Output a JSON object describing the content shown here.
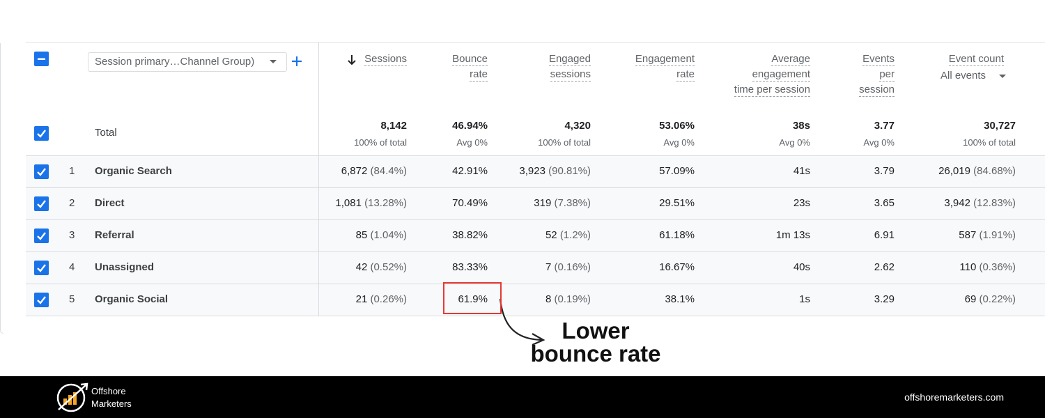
{
  "toolbar": {
    "dimension": "Session primary…Channel Group)"
  },
  "table": {
    "columns": [
      {
        "label": [
          "Sessions"
        ]
      },
      {
        "label": [
          "Bounce",
          "rate"
        ]
      },
      {
        "label": [
          "Engaged",
          "sessions"
        ]
      },
      {
        "label": [
          "Engagement",
          "rate"
        ]
      },
      {
        "label": [
          "Average",
          "engagement",
          "time per session"
        ]
      },
      {
        "label": [
          "Events",
          "per",
          "session"
        ]
      },
      {
        "label": [
          "Event count"
        ],
        "filter": "All events"
      }
    ],
    "total": {
      "label": "Total",
      "cells": [
        {
          "value": "8,142",
          "note": "100% of total"
        },
        {
          "value": "46.94%",
          "note": "Avg 0%"
        },
        {
          "value": "4,320",
          "note": "100% of total"
        },
        {
          "value": "53.06%",
          "note": "Avg 0%"
        },
        {
          "value": "38s",
          "note": "Avg 0%"
        },
        {
          "value": "3.77",
          "note": "Avg 0%"
        },
        {
          "value": "30,727",
          "note": "100% of total"
        }
      ]
    },
    "rows": [
      {
        "index": "1",
        "channel": "Organic Search",
        "cells": [
          {
            "value": "6,872",
            "share": "(84.4%)"
          },
          {
            "value": "42.91%"
          },
          {
            "value": "3,923",
            "share": "(90.81%)"
          },
          {
            "value": "57.09%"
          },
          {
            "value": "41s"
          },
          {
            "value": "3.79"
          },
          {
            "value": "26,019",
            "share": "(84.68%)"
          }
        ]
      },
      {
        "index": "2",
        "channel": "Direct",
        "cells": [
          {
            "value": "1,081",
            "share": "(13.28%)"
          },
          {
            "value": "70.49%"
          },
          {
            "value": "319",
            "share": "(7.38%)"
          },
          {
            "value": "29.51%"
          },
          {
            "value": "23s"
          },
          {
            "value": "3.65"
          },
          {
            "value": "3,942",
            "share": "(12.83%)"
          }
        ]
      },
      {
        "index": "3",
        "channel": "Referral",
        "cells": [
          {
            "value": "85",
            "share": "(1.04%)"
          },
          {
            "value": "38.82%"
          },
          {
            "value": "52",
            "share": "(1.2%)"
          },
          {
            "value": "61.18%"
          },
          {
            "value": "1m 13s"
          },
          {
            "value": "6.91"
          },
          {
            "value": "587",
            "share": "(1.91%)"
          }
        ]
      },
      {
        "index": "4",
        "channel": "Unassigned",
        "cells": [
          {
            "value": "42",
            "share": "(0.52%)"
          },
          {
            "value": "83.33%"
          },
          {
            "value": "7",
            "share": "(0.16%)"
          },
          {
            "value": "16.67%"
          },
          {
            "value": "40s"
          },
          {
            "value": "2.62"
          },
          {
            "value": "110",
            "share": "(0.36%)"
          }
        ]
      },
      {
        "index": "5",
        "channel": "Organic Social",
        "cells": [
          {
            "value": "21",
            "share": "(0.26%)"
          },
          {
            "value": "61.9%"
          },
          {
            "value": "8",
            "share": "(0.19%)"
          },
          {
            "value": "38.1%"
          },
          {
            "value": "1s"
          },
          {
            "value": "3.29"
          },
          {
            "value": "69",
            "share": "(0.22%)"
          }
        ]
      }
    ]
  },
  "annotation": [
    "Lower",
    "bounce rate"
  ],
  "footer": {
    "brand": [
      "Offshore",
      "Marketers"
    ],
    "url": "offshoremarketers.com"
  }
}
